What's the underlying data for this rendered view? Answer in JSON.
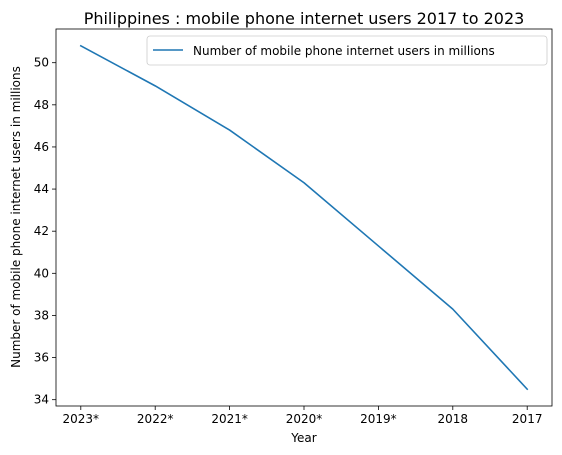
{
  "chart_data": {
    "type": "line",
    "title": "Philippines : mobile phone internet users 2017 to 2023",
    "xlabel": "Year",
    "ylabel": "Number of mobile phone internet users in millions",
    "categories": [
      "2023*",
      "2022*",
      "2021*",
      "2020*",
      "2019*",
      "2018",
      "2017"
    ],
    "series": [
      {
        "name": "Number of mobile phone internet users in millions",
        "values": [
          50.8,
          48.9,
          46.8,
          44.3,
          41.3,
          38.3,
          34.5
        ]
      }
    ],
    "ylim": [
      33.7,
      51.6
    ],
    "yticks": [
      34,
      36,
      38,
      40,
      42,
      44,
      46,
      48,
      50
    ],
    "grid": false,
    "legend_position": "top-right",
    "colors": {
      "line": "#1f77b4"
    }
  }
}
